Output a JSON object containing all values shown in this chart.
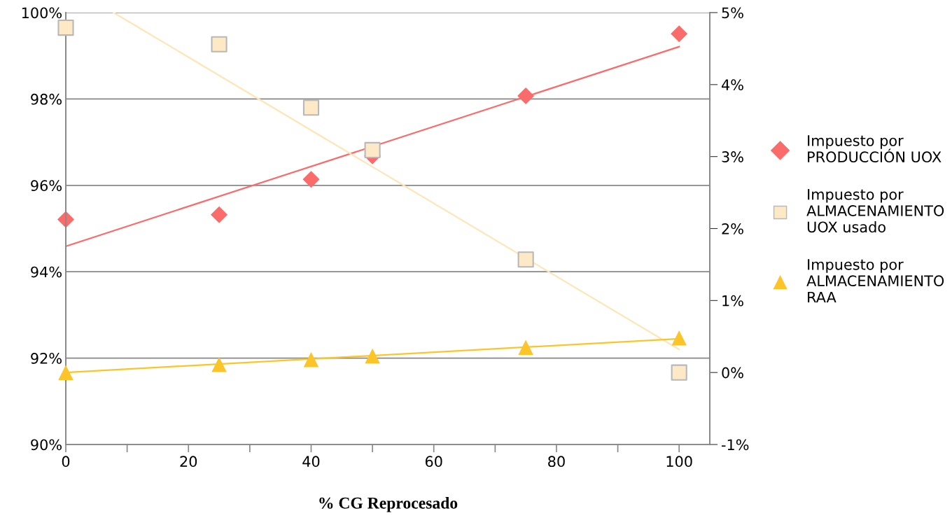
{
  "chart_data": {
    "type": "scatter",
    "xlabel": "% CG Reprocesado",
    "xlim": [
      0,
      105
    ],
    "xticks": [
      0,
      {
        "value": 10,
        "label": null
      },
      20,
      {
        "value": 30,
        "label": null
      },
      40,
      {
        "value": 50,
        "label": null
      },
      60,
      {
        "value": 70,
        "label": null
      },
      80,
      {
        "value": 90,
        "label": null
      },
      100
    ],
    "ylim": [
      90,
      100
    ],
    "yticks": [
      {
        "value": 90,
        "label": "90%"
      },
      {
        "value": 92,
        "label": "92%"
      },
      {
        "value": 94,
        "label": "94%"
      },
      {
        "value": 96,
        "label": "96%"
      },
      {
        "value": 98,
        "label": "98%"
      },
      {
        "value": 100,
        "label": "100%"
      }
    ],
    "y2lim": [
      -1,
      5
    ],
    "y2ticks": [
      {
        "value": -1,
        "label": "-1%"
      },
      {
        "value": 0,
        "label": "0%"
      },
      {
        "value": 1,
        "label": "1%"
      },
      {
        "value": 2,
        "label": "2%"
      },
      {
        "value": 3,
        "label": "3%"
      },
      {
        "value": 4,
        "label": "4%"
      },
      {
        "value": 5,
        "label": "5%"
      }
    ],
    "grid": "y",
    "legend": "right",
    "series": [
      {
        "name": "Impuesto por\nPRODUCCIÓN UOX",
        "marker": "diamond",
        "color": "#fa6c6c",
        "x": [
          0,
          25,
          40,
          50,
          75,
          100
        ],
        "values": [
          95.21,
          95.32,
          96.14,
          96.68,
          98.07,
          99.51
        ]
      },
      {
        "name": "Impuesto por\nALMACENAMIENTO\nUOX usado",
        "marker": "square",
        "color": "#fde9c6",
        "axis": "y2",
        "x": [
          0,
          25,
          40,
          50,
          75,
          100
        ],
        "values": [
          4.79,
          4.56,
          3.68,
          3.09,
          1.57,
          0
        ]
      },
      {
        "name": "Impuesto por\nALMACENAMIENTO\nRAA",
        "marker": "triangle",
        "color": "#fbc52a",
        "axis": "y2",
        "x": [
          0,
          25,
          40,
          50,
          75,
          100
        ],
        "values": [
          0,
          0.11,
          0.18,
          0.23,
          0.35,
          0.48
        ]
      },
      {
        "type": "line",
        "color": "#fa6c6c",
        "x": [
          0,
          100
        ],
        "values": [
          94.59,
          99.21
        ]
      },
      {
        "type": "line",
        "color": "#fde6b8",
        "axis": "y2",
        "x": [
          7.8,
          100
        ],
        "values": [
          5,
          0.32
        ]
      },
      {
        "type": "line",
        "color": "#fbc52a",
        "axis": "y2",
        "x": [
          0,
          100
        ],
        "values": [
          0,
          0.47
        ]
      }
    ]
  }
}
